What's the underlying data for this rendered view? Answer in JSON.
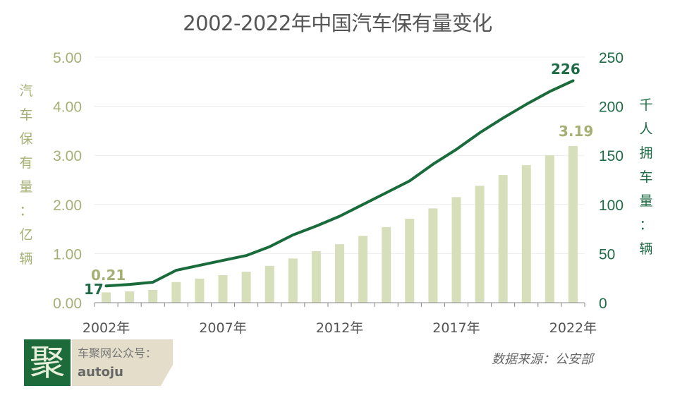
{
  "chart_data": {
    "type": "bar+line",
    "title": "2002-2022年中国汽车保有量变化",
    "categories": [
      "2002",
      "2003",
      "2004",
      "2005",
      "2006",
      "2007",
      "2008",
      "2009",
      "2010",
      "2011",
      "2012",
      "2013",
      "2014",
      "2015",
      "2016",
      "2017",
      "2018",
      "2019",
      "2020",
      "2021",
      "2022"
    ],
    "x_tick_labels": [
      "2002年",
      "2007年",
      "2012年",
      "2017年",
      "2022年"
    ],
    "series": [
      {
        "name": "汽车保有量",
        "type": "bar",
        "axis": "left",
        "color": "#d6dfba",
        "values": [
          0.21,
          0.23,
          0.26,
          0.42,
          0.49,
          0.56,
          0.63,
          0.75,
          0.9,
          1.05,
          1.19,
          1.36,
          1.54,
          1.71,
          1.92,
          2.15,
          2.38,
          2.6,
          2.8,
          3.0,
          3.19
        ]
      },
      {
        "name": "千人拥车量",
        "type": "line",
        "axis": "right",
        "color": "#1a6b3c",
        "values": [
          17,
          18.6,
          20.8,
          33,
          38,
          43,
          48,
          57,
          69,
          78,
          88,
          100,
          112,
          124,
          141,
          156,
          173,
          188,
          202,
          215,
          226
        ]
      }
    ],
    "left_axis": {
      "label": "汽车保有量：亿辆",
      "label_chars": [
        "汽",
        "车",
        "保",
        "有",
        "量",
        "：",
        "亿",
        "辆"
      ],
      "ylim": [
        0,
        5
      ],
      "ticks": [
        "0.00",
        "1.00",
        "2.00",
        "3.00",
        "4.00",
        "5.00"
      ],
      "color": "#a5b074"
    },
    "right_axis": {
      "label": "千人拥车量：辆",
      "label_chars": [
        "千",
        "人",
        "拥",
        "车",
        "量",
        "：",
        "辆"
      ],
      "ylim": [
        0,
        250
      ],
      "ticks": [
        "0",
        "50",
        "100",
        "150",
        "200",
        "250"
      ],
      "color": "#1e6b45"
    },
    "annotations": {
      "bar_first": "0.21",
      "bar_last": "3.19",
      "line_first": "17",
      "line_last": "226"
    },
    "grid": true
  },
  "branding": {
    "logo_char": "聚",
    "line1": "车聚网公众号：",
    "line2": "autoju"
  },
  "source": "数据来源：公安部"
}
